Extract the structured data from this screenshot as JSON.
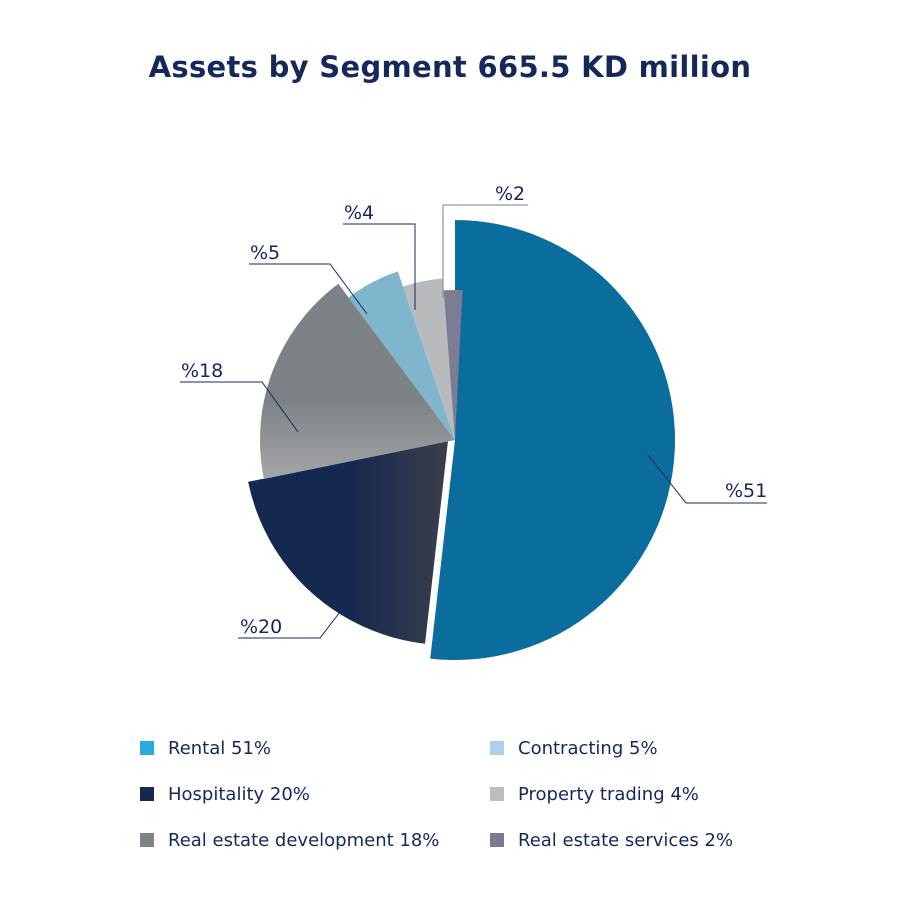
{
  "chart_data": {
    "type": "pie",
    "title": "Assets by Segment  665.5 KD million",
    "slices": [
      {
        "name": "Rental 51%",
        "value": 51,
        "data_label": "%51",
        "color": "#0a6d9e",
        "legend_color": "#29abe2"
      },
      {
        "name": "Hospitality 20%",
        "value": 20,
        "data_label": "%20",
        "color": "#15284f",
        "legend_color": "#15284f"
      },
      {
        "name": "Real estate development 18%",
        "value": 18,
        "data_label": "%18",
        "color": "#7d8286",
        "legend_color": "#7d8286"
      },
      {
        "name": "Contracting 5%",
        "value": 5,
        "data_label": "%5",
        "color": "#7fb5cd",
        "legend_color": "#acd0ec"
      },
      {
        "name": "Property trading 4%",
        "value": 4,
        "data_label": "%4",
        "color": "#b8bbbe",
        "legend_color": "#bbbdbf"
      },
      {
        "name": "Real estate services 2%",
        "value": 2,
        "data_label": "%2",
        "color": "#7b7d93",
        "legend_color": "#777a93"
      }
    ],
    "legend_placement": "bottom"
  }
}
